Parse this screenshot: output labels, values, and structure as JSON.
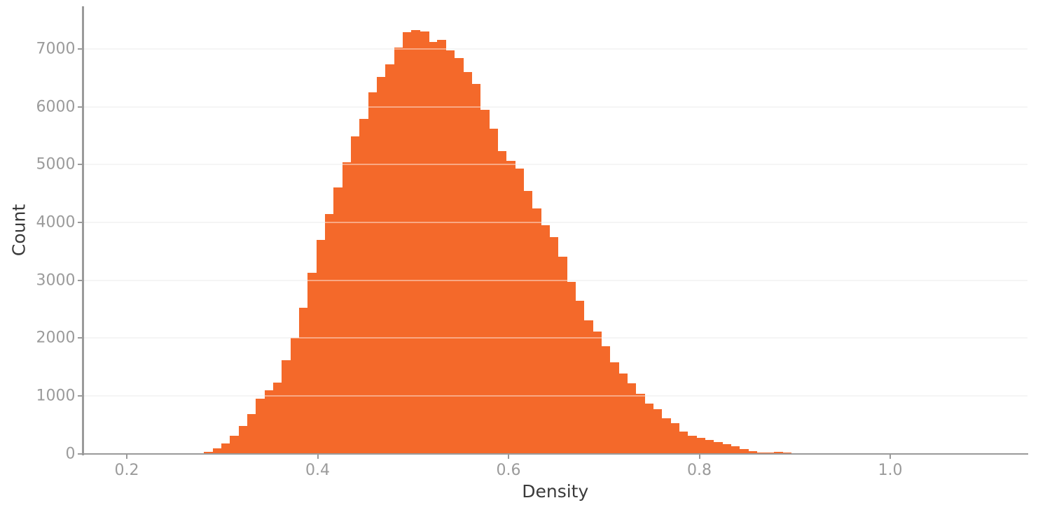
{
  "chart_data": {
    "type": "bar",
    "subtype": "histogram",
    "title": "",
    "xlabel": "Density",
    "ylabel": "Count",
    "bin_start": 0.281,
    "bin_width": 0.00905,
    "counts": [
      30,
      85,
      170,
      310,
      480,
      680,
      950,
      1090,
      1230,
      1620,
      2000,
      2520,
      3130,
      3700,
      4140,
      4600,
      5040,
      5480,
      5790,
      6250,
      6510,
      6730,
      7020,
      7290,
      7320,
      7300,
      7120,
      7150,
      6970,
      6840,
      6600,
      6390,
      5950,
      5620,
      5230,
      5060,
      4930,
      4540,
      4240,
      3950,
      3750,
      3410,
      2970,
      2640,
      2310,
      2110,
      1860,
      1580,
      1390,
      1210,
      1040,
      870,
      770,
      610,
      530,
      380,
      310,
      270,
      240,
      195,
      160,
      130,
      80,
      40,
      24,
      16,
      28,
      14,
      10,
      8,
      7,
      6,
      5
    ],
    "x_ticks": [
      0.2,
      0.4,
      0.6,
      0.8,
      1.0
    ],
    "x_tick_labels": [
      "0.2",
      "0.4",
      "0.6",
      "0.8",
      "1.0"
    ],
    "y_ticks": [
      0,
      1000,
      2000,
      3000,
      4000,
      5000,
      6000,
      7000
    ],
    "y_tick_labels": [
      "0",
      "1000",
      "2000",
      "3000",
      "4000",
      "5000",
      "6000",
      "7000"
    ],
    "xlim": [
      0.1541,
      1.1438
    ],
    "ylim": [
      0,
      7736
    ],
    "grid": "horizontal",
    "legend": "none",
    "colors": {
      "bar": "#f4692a",
      "background": "#ffffff",
      "grid_under": "#eeeeee",
      "grid_over": "rgba(255,255,255,0.42)",
      "spine": "#9a9a9a",
      "tick_mark": "#9a9a9a",
      "tick_label": "#9b9b9b",
      "axis_title": "#3a3a3a"
    }
  }
}
